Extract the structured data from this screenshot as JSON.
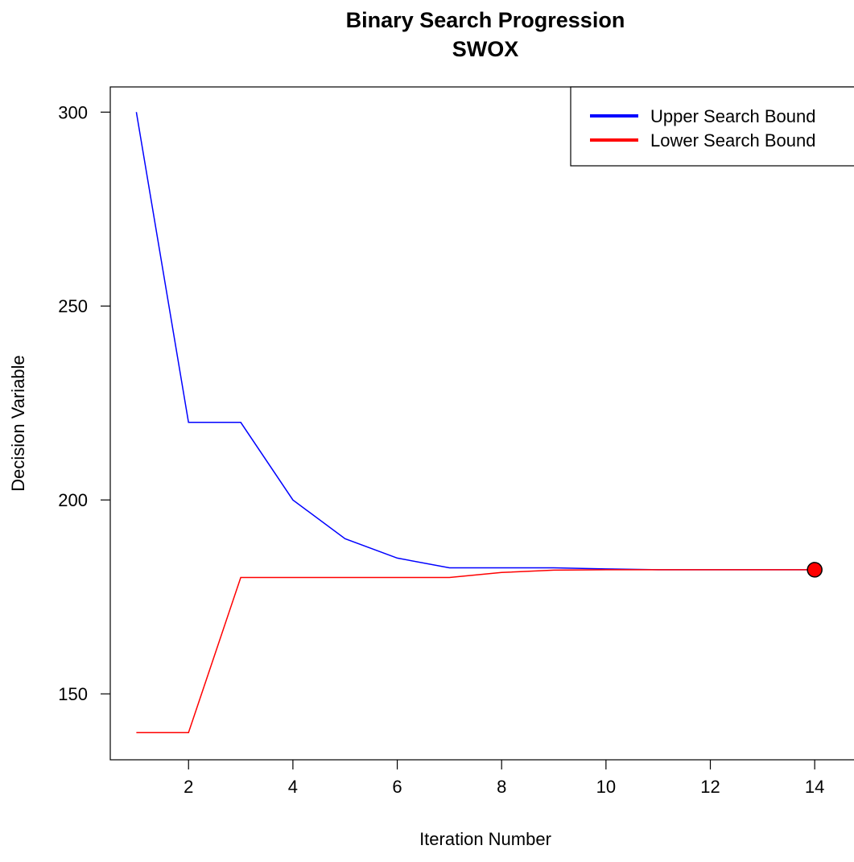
{
  "chart_data": {
    "type": "line",
    "title": "Binary Search Progression",
    "subtitle": "SWOX",
    "xlabel": "Iteration Number",
    "ylabel": "Decision Variable",
    "xlim": [
      0.5,
      15
    ],
    "ylim": [
      133,
      306.5
    ],
    "xticks": [
      2,
      4,
      6,
      8,
      10,
      12,
      14
    ],
    "yticks": [
      150,
      200,
      250,
      300
    ],
    "grid": false,
    "legend_position": "top-right",
    "x": [
      1,
      2,
      3,
      4,
      5,
      6,
      7,
      8,
      9,
      10,
      11,
      12,
      13,
      14
    ],
    "series": [
      {
        "name": "Upper Search Bound",
        "color": "#0000ff",
        "values": [
          300,
          220,
          220,
          200,
          190,
          185,
          182.5,
          182.5,
          182.5,
          182.2,
          182,
          182,
          182,
          182
        ]
      },
      {
        "name": "Lower Search Bound",
        "color": "#ff0000",
        "values": [
          140,
          140,
          180,
          180,
          180,
          180,
          180,
          181.3,
          181.9,
          182,
          182,
          182,
          182,
          182
        ]
      }
    ],
    "final_point": {
      "x": 14,
      "y": 182,
      "fill": "#ff0000",
      "stroke": "#000000"
    }
  }
}
